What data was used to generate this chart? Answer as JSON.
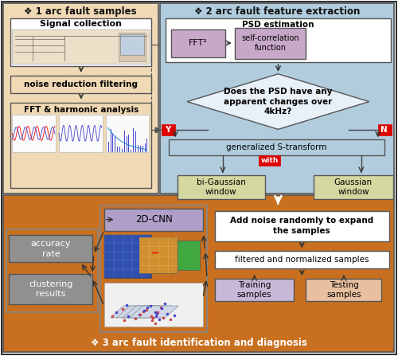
{
  "bg_color": "#FFFFFF",
  "sec1_bg": "#F0D9B5",
  "sec2_bg": "#B0CCDD",
  "sec3_bg": "#C87020",
  "sec1_title": "❖ 1 arc fault samples",
  "sec2_title": "❖ 2 arc fault feature extraction",
  "sec3_title": "❖ 3 arc fault identification and diagnosis",
  "box_signal": "Signal collection",
  "box_noise": "noise reduction filtering",
  "box_fft_label": "FFT & harmonic analysis",
  "box_psd_label": "PSD estimation",
  "box_fft2": "FFT²",
  "box_selfcorr": "self-correlation\nfunction",
  "diamond_text": "Does the PSD have any\napparent changes over\n4kHz?",
  "box_gst": "generalized S-transform",
  "box_with": "with",
  "box_bigauss": "bi-Gaussian\nwindow",
  "box_gauss": "Gaussian\nwindow",
  "box_addnoise": "Add noise randomly to expand\nthe samples",
  "box_filtered": "filtered and normalized samples",
  "box_training": "Training\nsamples",
  "box_testing": "Testing\nsamples",
  "box_2dcnn": "2D-CNN",
  "box_accuracy": "accuracy\nrate",
  "box_clustering": "clustering\nresults",
  "fft2_color": "#C8A8C8",
  "selfcorr_color": "#C8A8C8",
  "psd_box_color": "#FFFFFF",
  "diamond_color": "#E8F0F8",
  "gst_box_color": "#B0CCDD",
  "bigauss_color": "#D4D8A0",
  "gauss_color": "#D4D8A0",
  "addnoise_color": "#FFFFFF",
  "filtered_color": "#FFFFFF",
  "training_color": "#C8B8D8",
  "testing_color": "#E8C0A0",
  "cnn_box_color": "#B0A0C8",
  "accuracy_color": "#909090",
  "clustering_color": "#909090",
  "left_panel_color": "#C0B080",
  "arrow_color": "#333333",
  "red_label": "#DD0000",
  "white_arrow_color": "#FFFFFF"
}
